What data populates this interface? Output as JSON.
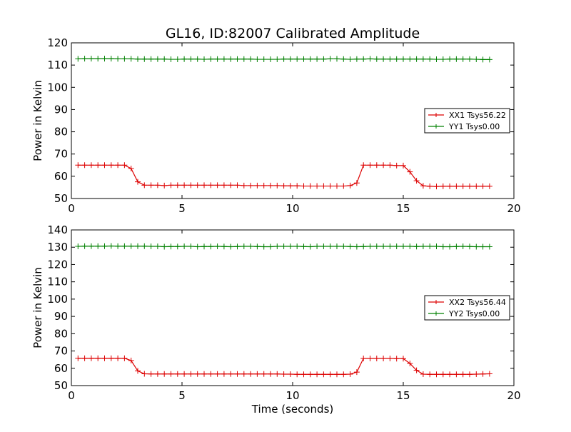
{
  "figure": {
    "title": "GL16, ID:82007 Calibrated Amplitude",
    "xlabel": "Time (seconds)"
  },
  "chart_data": [
    {
      "type": "line",
      "ylabel": "Power in Kelvin",
      "xlim": [
        0,
        20
      ],
      "ylim": [
        50,
        120
      ],
      "xticks": [
        0,
        5,
        10,
        15,
        20
      ],
      "yticks": [
        50,
        60,
        70,
        80,
        90,
        100,
        110,
        120
      ],
      "legend_position": "center-right",
      "x": [
        0.3,
        0.6,
        0.9,
        1.2,
        1.5,
        1.8,
        2.1,
        2.4,
        2.7,
        3.0,
        3.3,
        3.6,
        3.9,
        4.2,
        4.5,
        4.8,
        5.1,
        5.4,
        5.7,
        6.0,
        6.3,
        6.6,
        6.9,
        7.2,
        7.5,
        7.8,
        8.1,
        8.4,
        8.7,
        9.0,
        9.3,
        9.6,
        9.9,
        10.2,
        10.5,
        10.8,
        11.1,
        11.4,
        11.7,
        12.0,
        12.3,
        12.6,
        12.9,
        13.2,
        13.5,
        13.8,
        14.1,
        14.4,
        14.7,
        15.0,
        15.3,
        15.6,
        15.9,
        16.2,
        16.5,
        16.8,
        17.1,
        17.4,
        17.7,
        18.0,
        18.3,
        18.6,
        18.9
      ],
      "series": [
        {
          "name": "XX1 Tsys56.22",
          "color": "#dd0000",
          "values": [
            65,
            65,
            65,
            65,
            65,
            65,
            65,
            65,
            63.5,
            57.5,
            56,
            56,
            56,
            55.8,
            56,
            56,
            56,
            56,
            56,
            56,
            56,
            56,
            56,
            56,
            56,
            55.8,
            55.8,
            55.8,
            55.8,
            55.8,
            55.8,
            55.7,
            55.7,
            55.7,
            55.6,
            55.6,
            55.6,
            55.6,
            55.6,
            55.6,
            55.6,
            55.8,
            57,
            65,
            65,
            65,
            65,
            65,
            64.8,
            64.8,
            62,
            58,
            55.7,
            55.5,
            55.4,
            55.5,
            55.5,
            55.5,
            55.5,
            55.5,
            55.5,
            55.5,
            55.5
          ]
        },
        {
          "name": "YY1 Tsys0.00",
          "color": "#008000",
          "values": [
            112.8,
            112.9,
            112.9,
            112.9,
            112.9,
            112.9,
            112.8,
            112.8,
            112.8,
            112.7,
            112.7,
            112.7,
            112.7,
            112.7,
            112.6,
            112.6,
            112.7,
            112.7,
            112.7,
            112.6,
            112.7,
            112.7,
            112.7,
            112.7,
            112.7,
            112.7,
            112.7,
            112.6,
            112.6,
            112.6,
            112.6,
            112.7,
            112.7,
            112.7,
            112.7,
            112.7,
            112.7,
            112.7,
            112.8,
            112.8,
            112.7,
            112.6,
            112.7,
            112.7,
            112.8,
            112.7,
            112.7,
            112.7,
            112.7,
            112.7,
            112.7,
            112.7,
            112.7,
            112.7,
            112.6,
            112.6,
            112.7,
            112.7,
            112.7,
            112.7,
            112.6,
            112.5,
            112.5
          ]
        }
      ]
    },
    {
      "type": "line",
      "ylabel": "Power in Kelvin",
      "xlim": [
        0,
        20
      ],
      "ylim": [
        50,
        140
      ],
      "xticks": [
        0,
        5,
        10,
        15,
        20
      ],
      "yticks": [
        50,
        60,
        70,
        80,
        90,
        100,
        110,
        120,
        130,
        140
      ],
      "legend_position": "center-right",
      "x": [
        0.3,
        0.6,
        0.9,
        1.2,
        1.5,
        1.8,
        2.1,
        2.4,
        2.7,
        3.0,
        3.3,
        3.6,
        3.9,
        4.2,
        4.5,
        4.8,
        5.1,
        5.4,
        5.7,
        6.0,
        6.3,
        6.6,
        6.9,
        7.2,
        7.5,
        7.8,
        8.1,
        8.4,
        8.7,
        9.0,
        9.3,
        9.6,
        9.9,
        10.2,
        10.5,
        10.8,
        11.1,
        11.4,
        11.7,
        12.0,
        12.3,
        12.6,
        12.9,
        13.2,
        13.5,
        13.8,
        14.1,
        14.4,
        14.7,
        15.0,
        15.3,
        15.6,
        15.9,
        16.2,
        16.5,
        16.8,
        17.1,
        17.4,
        17.7,
        18.0,
        18.3,
        18.6,
        18.9
      ],
      "series": [
        {
          "name": "XX2 Tsys56.44",
          "color": "#dd0000",
          "values": [
            65.8,
            65.8,
            65.8,
            65.8,
            65.8,
            65.8,
            65.8,
            65.8,
            64.5,
            58.5,
            56.8,
            56.7,
            56.7,
            56.7,
            56.7,
            56.7,
            56.7,
            56.7,
            56.7,
            56.7,
            56.7,
            56.7,
            56.7,
            56.7,
            56.7,
            56.7,
            56.7,
            56.7,
            56.7,
            56.7,
            56.7,
            56.6,
            56.6,
            56.5,
            56.5,
            56.5,
            56.5,
            56.5,
            56.5,
            56.5,
            56.5,
            56.6,
            57.8,
            65.7,
            65.7,
            65.7,
            65.7,
            65.7,
            65.6,
            65.6,
            62.8,
            58.8,
            56.6,
            56.5,
            56.5,
            56.5,
            56.5,
            56.5,
            56.5,
            56.5,
            56.6,
            56.7,
            56.8
          ]
        },
        {
          "name": "YY2 Tsys0.00",
          "color": "#008000",
          "values": [
            130.5,
            130.6,
            130.6,
            130.6,
            130.6,
            130.7,
            130.6,
            130.6,
            130.6,
            130.6,
            130.6,
            130.5,
            130.5,
            130.3,
            130.4,
            130.4,
            130.5,
            130.5,
            130.3,
            130.4,
            130.4,
            130.5,
            130.4,
            130.3,
            130.4,
            130.5,
            130.5,
            130.4,
            130.3,
            130.3,
            130.5,
            130.5,
            130.5,
            130.5,
            130.4,
            130.3,
            130.5,
            130.5,
            130.5,
            130.5,
            130.5,
            130.4,
            130.3,
            130.4,
            130.5,
            130.5,
            130.5,
            130.5,
            130.5,
            130.5,
            130.5,
            130.4,
            130.5,
            130.5,
            130.5,
            130.3,
            130.3,
            130.4,
            130.5,
            130.4,
            130.3,
            130.3,
            130.3
          ]
        }
      ]
    }
  ]
}
